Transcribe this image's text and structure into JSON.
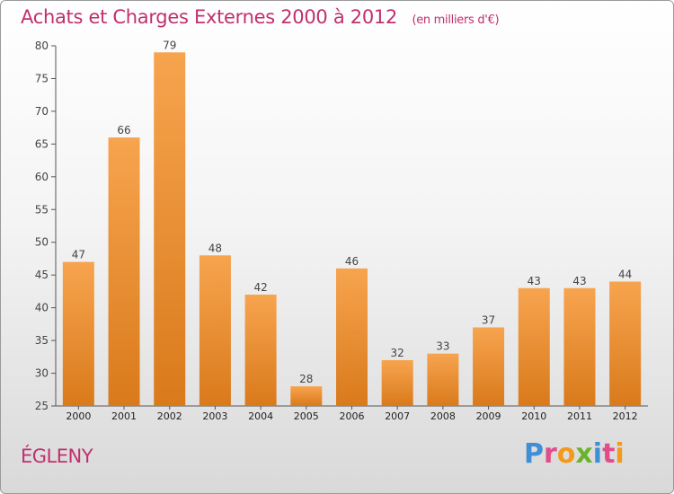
{
  "header": {
    "title": "Achats et Charges Externes 2000 à 2012",
    "subtitle": "(en milliers d'€)"
  },
  "footer": {
    "commune": "ÉGLENY",
    "logo_letters": [
      "P",
      "r",
      "o",
      "x",
      "i",
      "t",
      "i"
    ],
    "logo_colors": [
      "#3f8fd6",
      "#e14d8b",
      "#f29a1a",
      "#6ab42d",
      "#3f8fd6",
      "#e14d8b",
      "#f29a1a"
    ]
  },
  "colors": {
    "title": "#c0306e",
    "bar_light": "#f7a44f",
    "bar_dark": "#d97a1b",
    "axis": "#555555"
  },
  "chart_data": {
    "type": "bar",
    "categories": [
      "2000",
      "2001",
      "2002",
      "2003",
      "2004",
      "2005",
      "2006",
      "2007",
      "2008",
      "2009",
      "2010",
      "2011",
      "2012"
    ],
    "values": [
      47,
      66,
      79,
      48,
      42,
      28,
      46,
      32,
      33,
      37,
      43,
      43,
      44
    ],
    "ylim": [
      25,
      80
    ],
    "yticks": [
      25,
      30,
      35,
      40,
      45,
      50,
      55,
      60,
      65,
      70,
      75,
      80
    ],
    "grid": false
  }
}
